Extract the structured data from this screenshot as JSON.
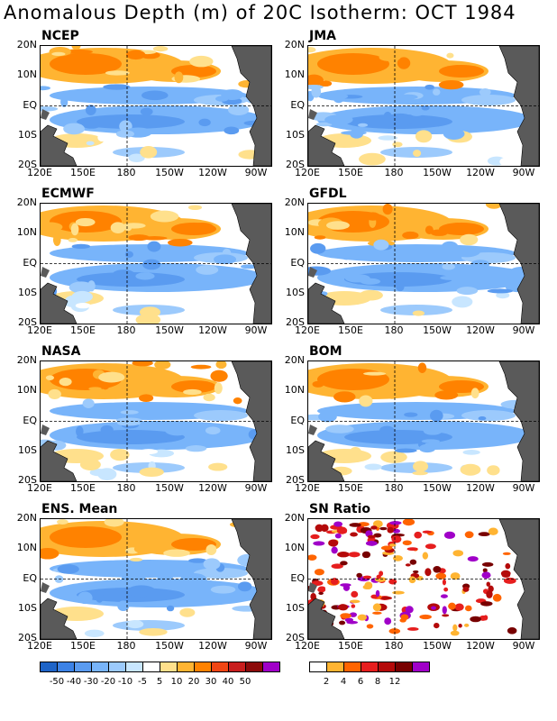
{
  "title": "Anomalous Depth (m) of 20C Isotherm: OCT 1984",
  "panels": [
    {
      "label": "NCEP",
      "scheme": "anom"
    },
    {
      "label": "JMA",
      "scheme": "anom"
    },
    {
      "label": "ECMWF",
      "scheme": "anom"
    },
    {
      "label": "GFDL",
      "scheme": "anom"
    },
    {
      "label": "NASA",
      "scheme": "anom"
    },
    {
      "label": "BOM",
      "scheme": "anom"
    },
    {
      "label": "ENS. Mean",
      "scheme": "anom"
    },
    {
      "label": "SN Ratio",
      "scheme": "sn"
    }
  ],
  "axes": {
    "y_ticks": [
      "20N",
      "10N",
      "EQ",
      "10S",
      "20S"
    ],
    "x_ticks": [
      "120E",
      "150E",
      "180",
      "150W",
      "120W",
      "90W"
    ]
  },
  "colorbar_anom": {
    "labels": [
      "-50",
      "-40",
      "-30",
      "-20",
      "-10",
      "-5",
      "5",
      "10",
      "20",
      "30",
      "40",
      "50"
    ],
    "colors": [
      "#1e64c8",
      "#3c82e6",
      "#5a9bf0",
      "#78b4fa",
      "#9ccafc",
      "#c8e6ff",
      "#ffffff",
      "#ffe08c",
      "#ffb432",
      "#ff8200",
      "#f04614",
      "#c81e1e",
      "#8c0a0a",
      "#a000c8"
    ]
  },
  "colorbar_sn": {
    "labels": [
      "2",
      "4",
      "6",
      "8",
      "12"
    ],
    "colors": [
      "#ffffff",
      "#ffb432",
      "#ff6400",
      "#e61e1e",
      "#b40a0a",
      "#780000",
      "#a000c8"
    ]
  },
  "colors": {
    "land": "#5a5a5a",
    "coast": "#000000"
  }
}
